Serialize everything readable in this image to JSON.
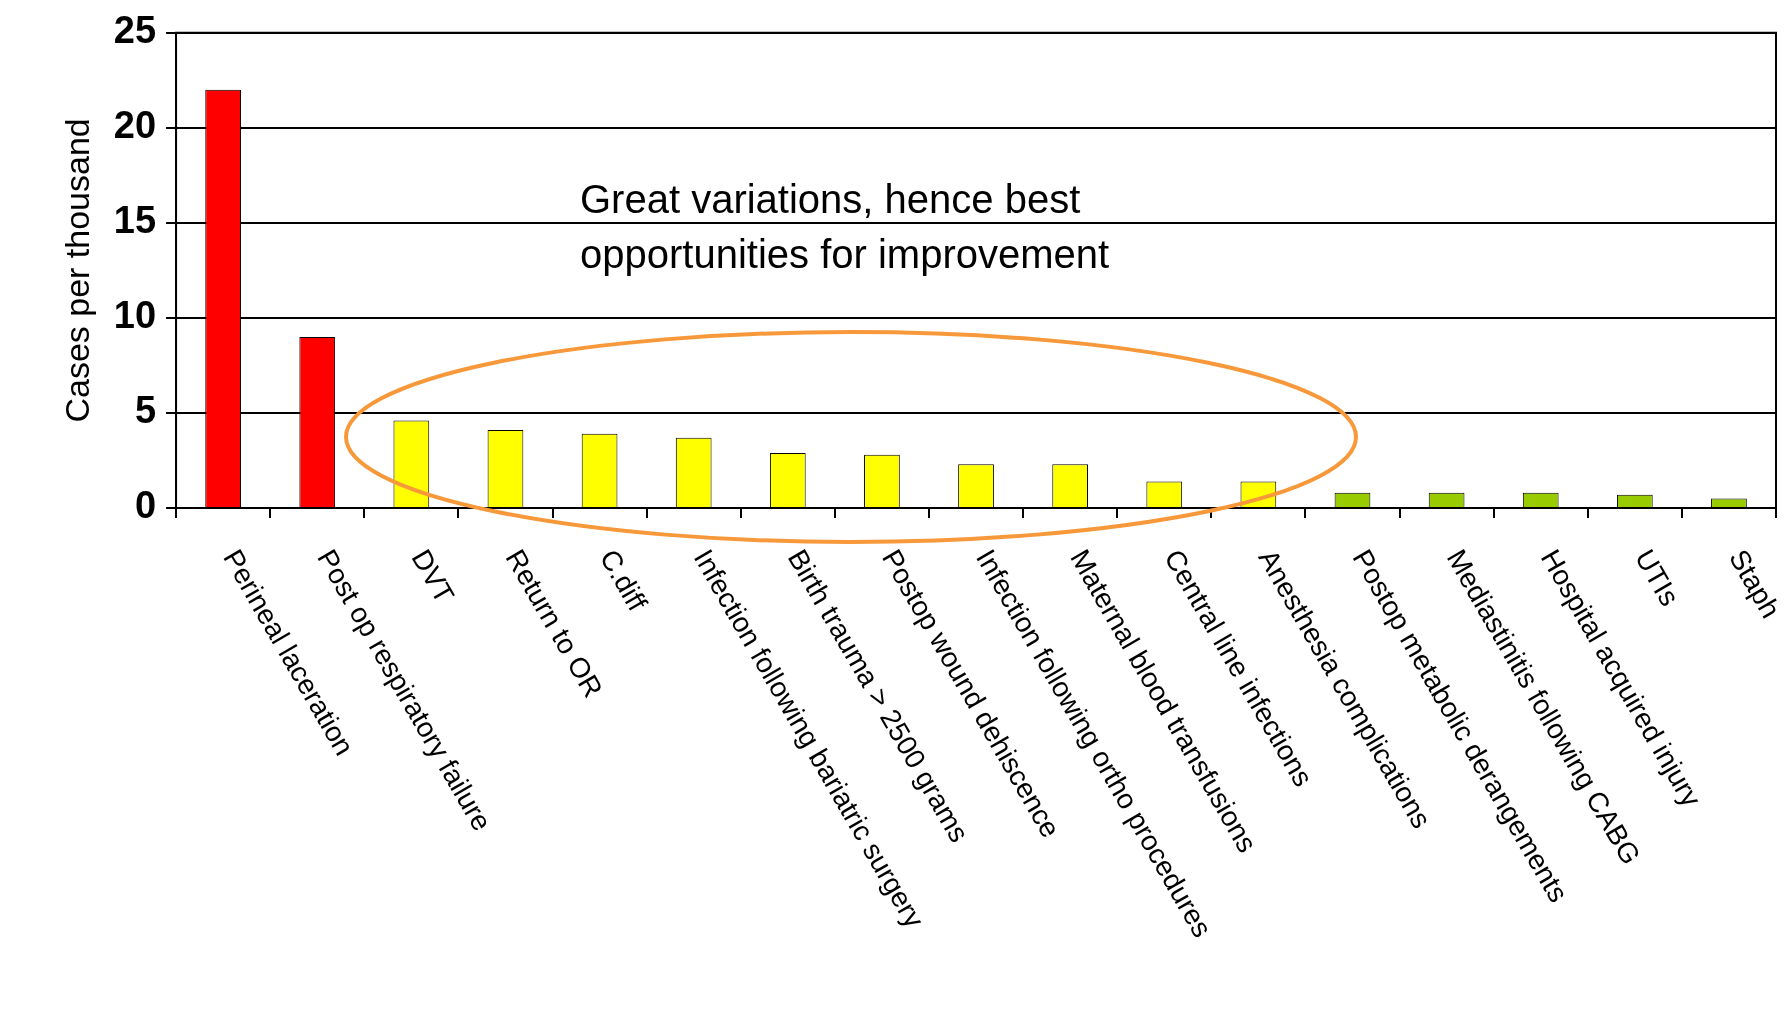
{
  "chart_data": {
    "type": "bar",
    "ylabel": "Cases per thousand",
    "categories": [
      "Perineal laceration",
      "Post op respiratory failure",
      "DVT",
      "Return to OR",
      "C.diff",
      "Infection following bariatric surgery",
      "Birth trauma > 2500 grams",
      "Postop wound dehiscence",
      "Infection following ortho procedures",
      "Maternal blood transfusions",
      "Central line infections",
      "Anesthesia complications",
      "Postop metabolic derangements",
      "Mediastinitis following CABG",
      "Hospital acquired injury",
      "UTIs",
      "Staph"
    ],
    "values": [
      22,
      9,
      4.6,
      4.1,
      3.9,
      3.7,
      2.9,
      2.8,
      2.3,
      2.3,
      1.4,
      1.4,
      0.8,
      0.8,
      0.8,
      0.7,
      0.5
    ],
    "colors": [
      "#ff0000",
      "#ff0000",
      "#ffff00",
      "#ffff00",
      "#ffff00",
      "#ffff00",
      "#ffff00",
      "#ffff00",
      "#ffff00",
      "#ffff00",
      "#ffff00",
      "#ffff00",
      "#99cc00",
      "#99cc00",
      "#99cc00",
      "#99cc00",
      "#99cc00"
    ],
    "ylim": [
      0,
      25
    ],
    "yticks": [
      0,
      5,
      10,
      15,
      20,
      25
    ],
    "grid": "y",
    "legend": false,
    "annotations": [
      "Great variations, hence best opportunities for improvement"
    ]
  }
}
